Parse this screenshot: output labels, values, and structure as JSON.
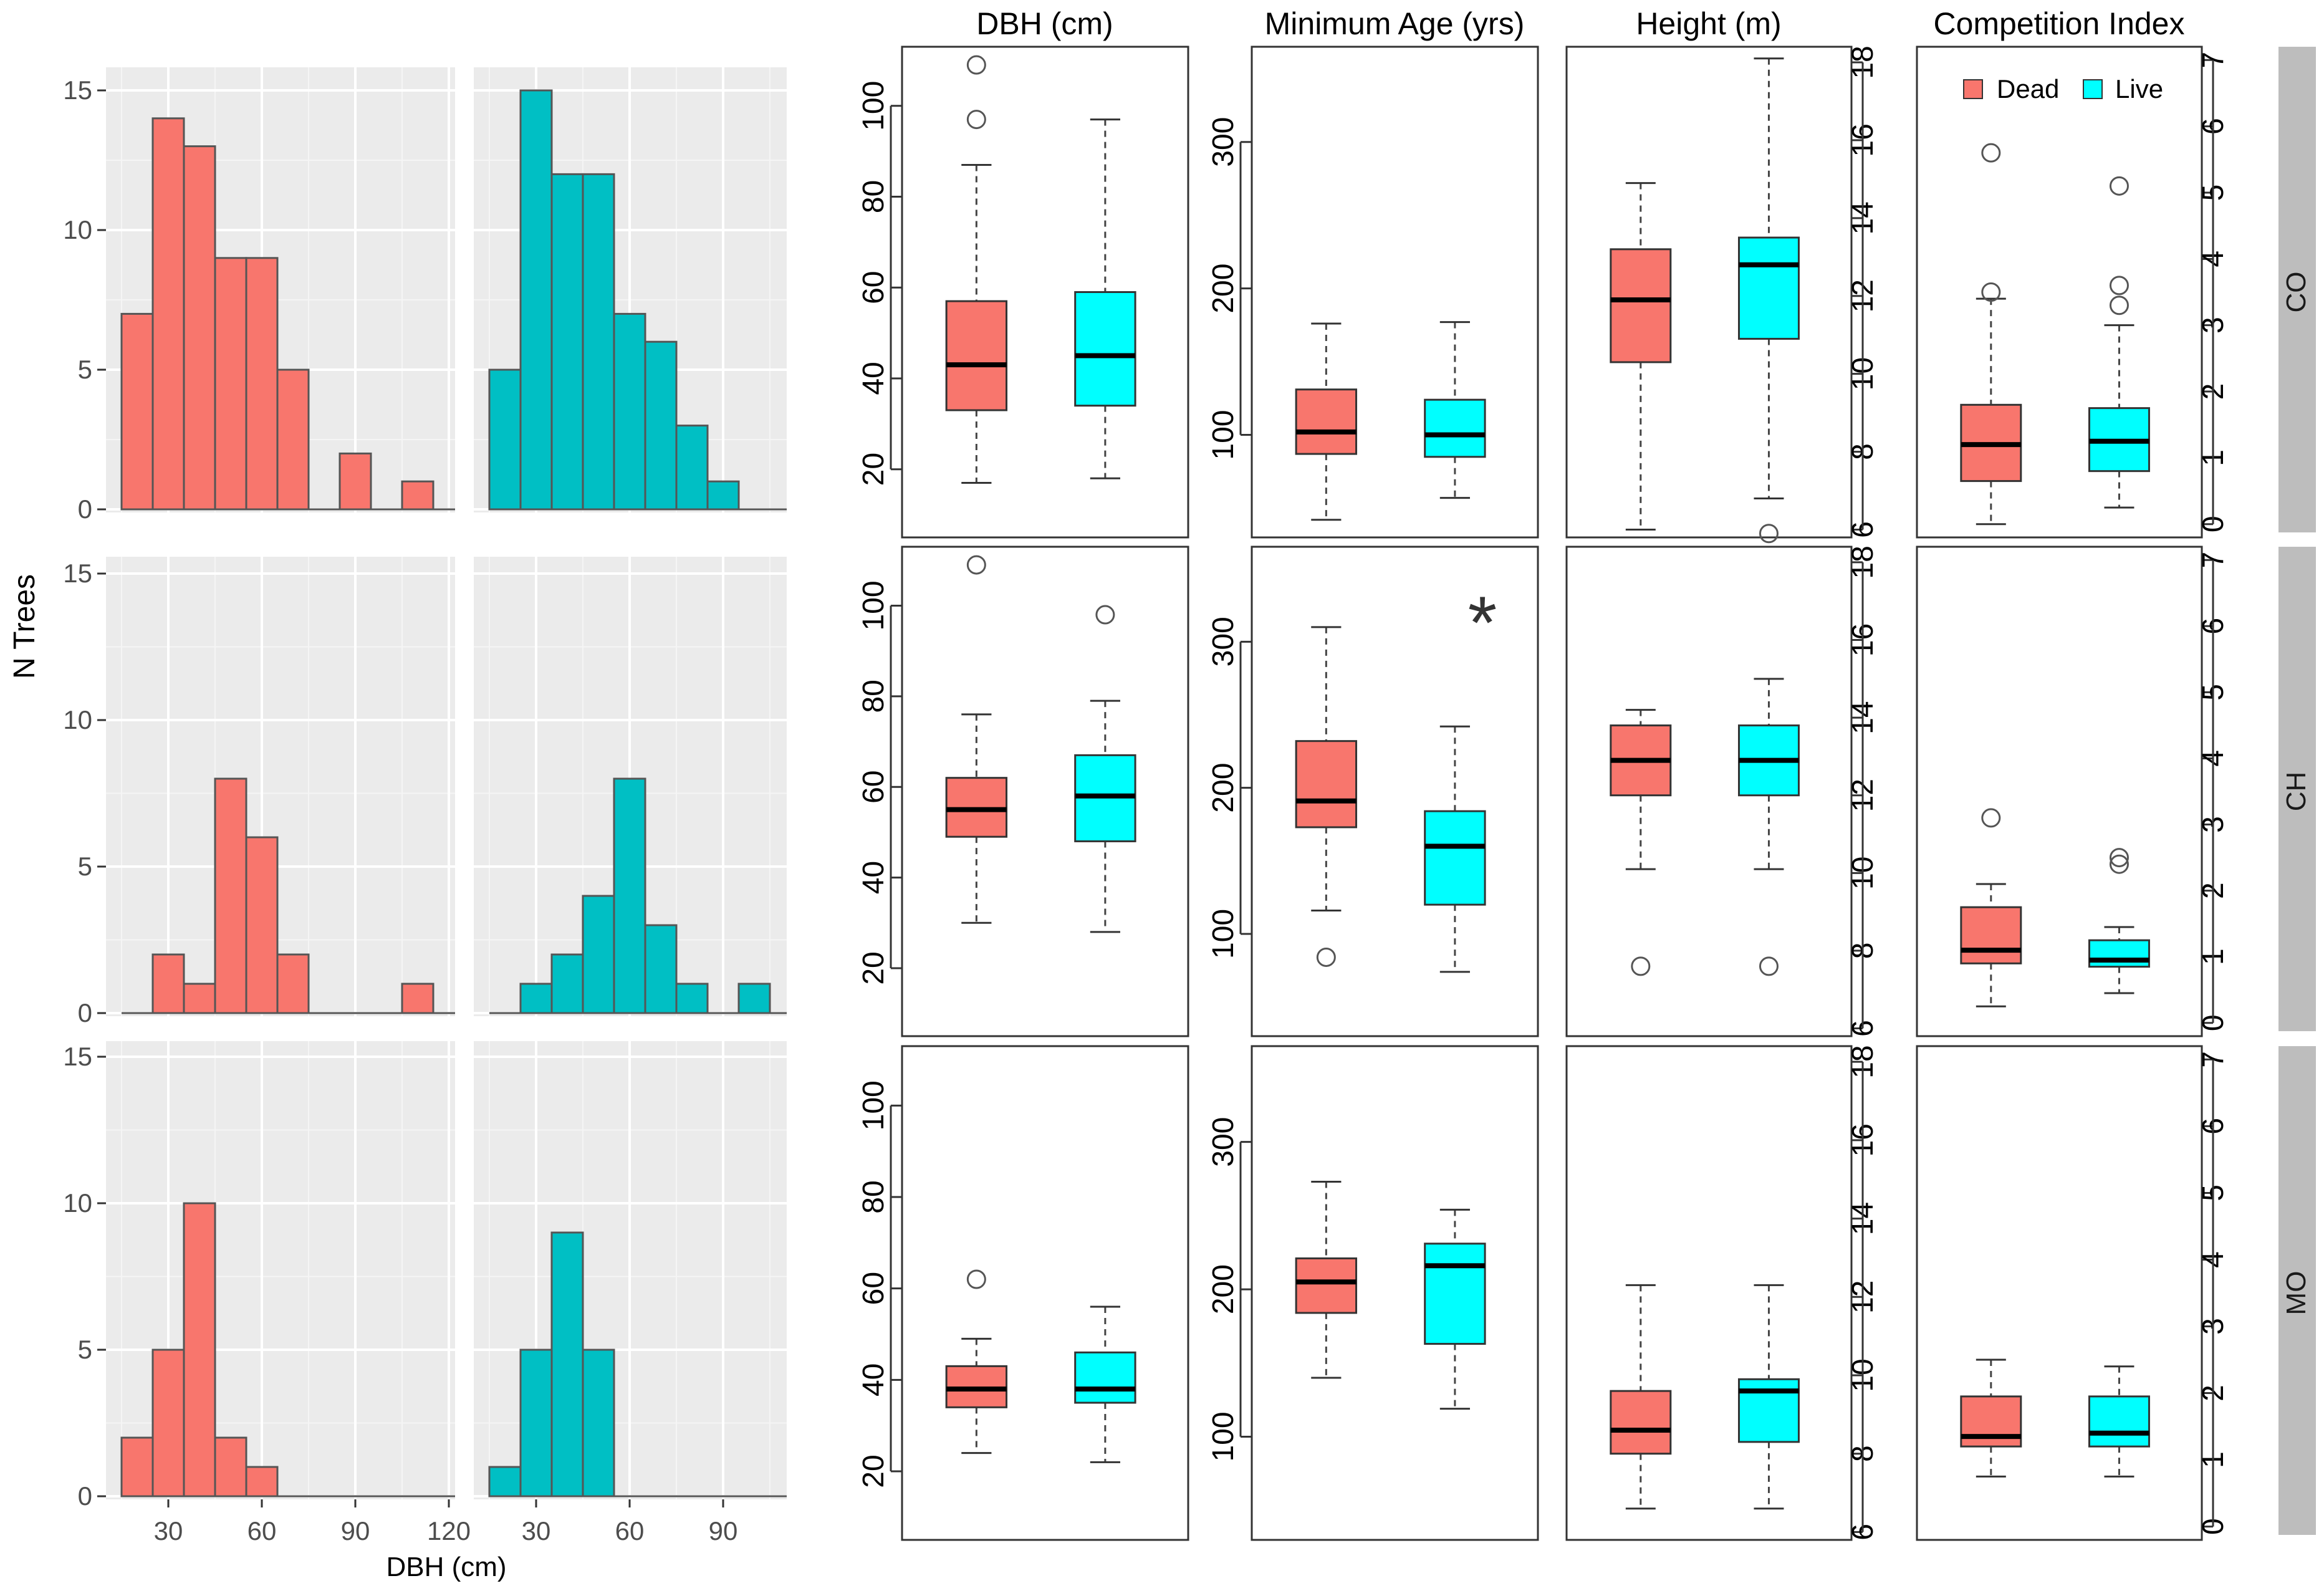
{
  "colors": {
    "dead": "#F8766D",
    "live": "#00BFC4",
    "live_box": "#00FFFF",
    "panel_bg": "#EBEBEB",
    "strip_bg": "#BDBDBD"
  },
  "strips": [
    "CO",
    "CH",
    "MO"
  ],
  "chart_data": [
    {
      "type": "bar",
      "title": "",
      "xlabel": "DBH (cm)",
      "ylabel": "N Trees",
      "xlim": [
        10,
        120
      ],
      "ylim": [
        0,
        16
      ],
      "bin_width": 10,
      "bin_starts": [
        15,
        25,
        35,
        45,
        55,
        65,
        75,
        85,
        95,
        105
      ],
      "x_ticks_left": [
        "30",
        "60",
        "90",
        "120"
      ],
      "x_ticks_right": [
        "30",
        "60",
        "90"
      ],
      "y_ticks": [
        "0",
        "5",
        "10",
        "15"
      ],
      "rows": [
        {
          "site": "CO",
          "dead": [
            7,
            14,
            13,
            9,
            9,
            5,
            0,
            2,
            0,
            1
          ],
          "live": [
            5,
            15,
            12,
            12,
            7,
            6,
            3,
            1,
            0,
            0
          ]
        },
        {
          "site": "CH",
          "dead": [
            0,
            2,
            1,
            8,
            6,
            2,
            0,
            0,
            0,
            1
          ],
          "live": [
            0,
            1,
            2,
            4,
            8,
            3,
            1,
            0,
            1,
            0
          ]
        },
        {
          "site": "MO",
          "dead": [
            2,
            5,
            10,
            2,
            1,
            0,
            0,
            0,
            0,
            0
          ],
          "live": [
            1,
            5,
            9,
            5,
            0,
            0,
            0,
            0,
            0,
            0
          ]
        }
      ]
    },
    {
      "type": "box",
      "legend": {
        "dead": "Dead",
        "live": "Live"
      },
      "significance_mark": "*",
      "variables": [
        {
          "title": "DBH (cm)",
          "ylim": [
            5,
            113
          ],
          "ticks": [
            20,
            40,
            60,
            80,
            100
          ],
          "tick_labels": [
            "20",
            "40",
            "60",
            "80",
            "100"
          ],
          "axis_side": "left",
          "rows": [
            {
              "dead": {
                "min": 17,
                "q1": 33,
                "median": 43,
                "q3": 57,
                "max": 87,
                "outliers": [
                  97,
                  109
                ]
              },
              "live": {
                "min": 18,
                "q1": 34,
                "median": 45,
                "q3": 59,
                "max": 97,
                "outliers": []
              }
            },
            {
              "dead": {
                "min": 30,
                "q1": 49,
                "median": 55,
                "q3": 62,
                "max": 76,
                "outliers": [
                  109
                ]
              },
              "live": {
                "min": 28,
                "q1": 48,
                "median": 58,
                "q3": 67,
                "max": 79,
                "outliers": [
                  98
                ]
              }
            },
            {
              "dead": {
                "min": 24,
                "q1": 34,
                "median": 38,
                "q3": 43,
                "max": 49,
                "outliers": [
                  62
                ]
              },
              "live": {
                "min": 22,
                "q1": 35,
                "median": 38,
                "q3": 46,
                "max": 56,
                "outliers": []
              }
            }
          ]
        },
        {
          "title": "Minimum Age (yrs)",
          "ylim": [
            30,
            365
          ],
          "ticks": [
            100,
            200,
            300
          ],
          "tick_labels": [
            "100",
            "200",
            "300"
          ],
          "axis_side": "left",
          "rows": [
            {
              "dead": {
                "min": 42,
                "q1": 87,
                "median": 102,
                "q3": 131,
                "max": 176,
                "outliers": []
              },
              "live": {
                "min": 57,
                "q1": 85,
                "median": 100,
                "q3": 124,
                "max": 177,
                "outliers": []
              }
            },
            {
              "dead": {
                "min": 116,
                "q1": 173,
                "median": 191,
                "q3": 232,
                "max": 310,
                "outliers": [
                  84
                ]
              },
              "live": {
                "min": 74,
                "q1": 120,
                "median": 160,
                "q3": 184,
                "max": 242,
                "outliers": []
              }
            },
            {
              "dead": {
                "min": 140,
                "q1": 184,
                "median": 205,
                "q3": 221,
                "max": 273,
                "outliers": []
              },
              "live": {
                "min": 119,
                "q1": 163,
                "median": 216,
                "q3": 231,
                "max": 254,
                "outliers": []
              }
            }
          ]
        },
        {
          "title": "Height (m)",
          "ylim": [
            5.8,
            18.4
          ],
          "ticks": [
            6,
            8,
            10,
            12,
            14,
            16,
            18
          ],
          "tick_labels": [
            "6",
            "8",
            "10",
            "12",
            "14",
            "16",
            "18"
          ],
          "axis_side": "right",
          "rows": [
            {
              "dead": {
                "min": 6.0,
                "q1": 10.3,
                "median": 11.9,
                "q3": 13.2,
                "max": 14.9,
                "outliers": []
              },
              "live": {
                "min": 6.8,
                "q1": 10.9,
                "median": 12.8,
                "q3": 13.5,
                "max": 18.1,
                "outliers": [
                  5.9
                ]
              }
            },
            {
              "dead": {
                "min": 10.1,
                "q1": 12.0,
                "median": 12.9,
                "q3": 13.8,
                "max": 14.2,
                "outliers": [
                  7.6
                ]
              },
              "live": {
                "min": 10.1,
                "q1": 12.0,
                "median": 12.9,
                "q3": 13.8,
                "max": 15.0,
                "outliers": [
                  7.6
                ]
              }
            },
            {
              "dead": {
                "min": 6.6,
                "q1": 8.0,
                "median": 8.6,
                "q3": 9.6,
                "max": 12.3,
                "outliers": []
              },
              "live": {
                "min": 6.6,
                "q1": 8.3,
                "median": 9.6,
                "q3": 9.9,
                "max": 12.3,
                "outliers": []
              }
            }
          ]
        },
        {
          "title": "Competition Index",
          "ylim": [
            -0.2,
            7.2
          ],
          "ticks": [
            0,
            1,
            2,
            3,
            4,
            5,
            6,
            7
          ],
          "tick_labels": [
            "0",
            "1",
            "2",
            "3",
            "4",
            "5",
            "6",
            "7"
          ],
          "axis_side": "right",
          "rows": [
            {
              "dead": {
                "min": 0.0,
                "q1": 0.65,
                "median": 1.2,
                "q3": 1.8,
                "max": 3.4,
                "outliers": [
                  5.6,
                  3.5
                ]
              },
              "live": {
                "min": 0.25,
                "q1": 0.8,
                "median": 1.25,
                "q3": 1.75,
                "max": 3.0,
                "outliers": [
                  5.1,
                  3.6,
                  3.3
                ]
              }
            },
            {
              "dead": {
                "min": 0.25,
                "q1": 0.9,
                "median": 1.1,
                "q3": 1.75,
                "max": 2.1,
                "outliers": [
                  3.1
                ]
              },
              "live": {
                "min": 0.45,
                "q1": 0.85,
                "median": 0.95,
                "q3": 1.25,
                "max": 1.45,
                "outliers": [
                  2.5,
                  2.4
                ]
              }
            },
            {
              "dead": {
                "min": 0.75,
                "q1": 1.2,
                "median": 1.35,
                "q3": 1.95,
                "max": 2.5,
                "outliers": []
              },
              "live": {
                "min": 0.75,
                "q1": 1.2,
                "median": 1.4,
                "q3": 1.95,
                "max": 2.4,
                "outliers": []
              }
            }
          ]
        }
      ]
    }
  ]
}
